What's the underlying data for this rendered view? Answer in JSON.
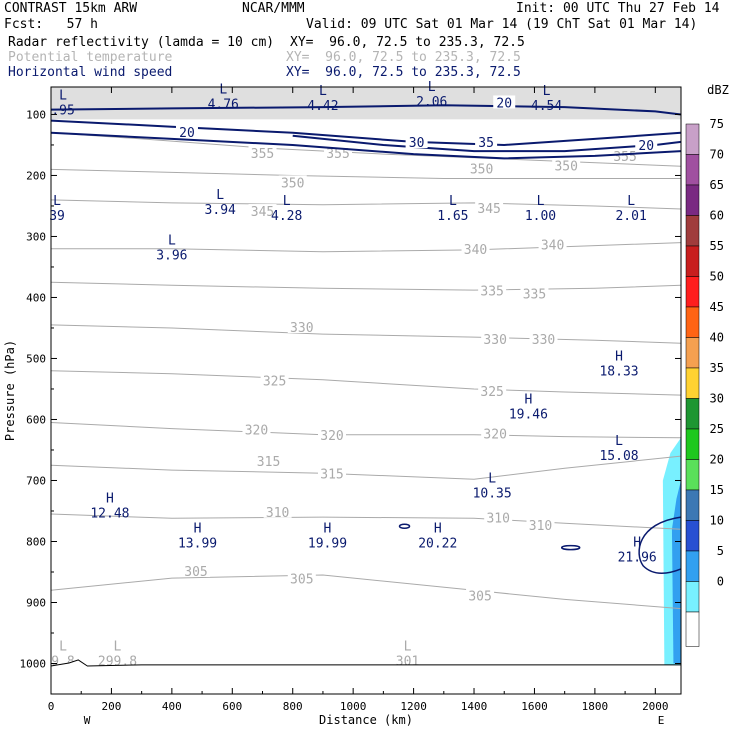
{
  "header": {
    "left_line1": "CONTRAST 15km ARW",
    "center_line1": "NCAR/MMM",
    "right_line1": "Init: 00 UTC Thu 27 Feb 14",
    "left_line2": "Fcst:   57 h",
    "right_line2": "Valid: 09 UTC Sat 01 Mar 14 (19 ChT Sat 01 Mar 14)"
  },
  "fields": [
    {
      "label": "Radar reflectivity (lamda = 10 cm)",
      "xy": "XY=  96.0, 72.5 to 235.3, 72.5",
      "color": "#000000"
    },
    {
      "label": "Potential temperature",
      "xy": "XY=  96.0, 72.5 to 235.3, 72.5",
      "color": "#b4b4b4"
    },
    {
      "label": "Horizontal wind speed",
      "xy": "XY=  96.0, 72.5 to 235.3, 72.5",
      "color": "#0a1a6e"
    }
  ],
  "chart_data": {
    "type": "cross-section",
    "xlabel": "Distance (km)",
    "ylabel": "Pressure (hPa)",
    "x_ticks": [
      0,
      200,
      400,
      600,
      800,
      1000,
      1200,
      1400,
      1600,
      1800,
      2000
    ],
    "y_ticks": [
      100,
      200,
      300,
      400,
      500,
      600,
      700,
      800,
      900,
      1000
    ],
    "xlim": [
      0,
      2085
    ],
    "ylim": [
      1050,
      55
    ],
    "west_label": "W",
    "east_label": "E",
    "colorbar": {
      "unit": "dBZ",
      "levels": [
        {
          "v": "75",
          "c": "#c8a0c8"
        },
        {
          "v": "70",
          "c": "#a050a0"
        },
        {
          "v": "65",
          "c": "#7a2a82"
        },
        {
          "v": "60",
          "c": "#a03c3c"
        },
        {
          "v": "55",
          "c": "#c81e1e"
        },
        {
          "v": "50",
          "c": "#ff1e1e"
        },
        {
          "v": "45",
          "c": "#ff6414"
        },
        {
          "v": "40",
          "c": "#f5a050"
        },
        {
          "v": "35",
          "c": "#ffd232"
        },
        {
          "v": "30",
          "c": "#1e9632"
        },
        {
          "v": "25",
          "c": "#1ec81e"
        },
        {
          "v": "20",
          "c": "#5ae05a"
        },
        {
          "v": "15",
          "c": "#3c78b4"
        },
        {
          "v": "10",
          "c": "#2850d2"
        },
        {
          "v": "5",
          "c": "#32a0f0"
        },
        {
          "v": "0",
          "c": "#78f0ff"
        }
      ]
    },
    "theta_contours": [
      {
        "label": "355",
        "points": [
          [
            0,
            130
          ],
          [
            300,
            140
          ],
          [
            700,
            155
          ],
          [
            1100,
            165
          ],
          [
            1600,
            175
          ],
          [
            2085,
            185
          ]
        ]
      },
      {
        "label": "350",
        "points": [
          [
            0,
            190
          ],
          [
            400,
            195
          ],
          [
            800,
            200
          ],
          [
            1300,
            205
          ],
          [
            1700,
            205
          ],
          [
            2085,
            205
          ]
        ]
      },
      {
        "label": "345",
        "points": [
          [
            0,
            240
          ],
          [
            400,
            245
          ],
          [
            900,
            248
          ],
          [
            1400,
            245
          ],
          [
            1800,
            250
          ],
          [
            2085,
            255
          ]
        ]
      },
      {
        "label": "340",
        "points": [
          [
            0,
            320
          ],
          [
            400,
            320
          ],
          [
            900,
            325
          ],
          [
            1400,
            322
          ],
          [
            1800,
            315
          ],
          [
            2085,
            310
          ]
        ]
      },
      {
        "label": "335",
        "points": [
          [
            0,
            375
          ],
          [
            400,
            380
          ],
          [
            900,
            385
          ],
          [
            1400,
            388
          ],
          [
            1800,
            385
          ],
          [
            2085,
            380
          ]
        ]
      },
      {
        "label": "330",
        "points": [
          [
            0,
            445
          ],
          [
            400,
            450
          ],
          [
            900,
            460
          ],
          [
            1400,
            465
          ],
          [
            1800,
            470
          ],
          [
            2085,
            475
          ]
        ]
      },
      {
        "label": "325",
        "points": [
          [
            0,
            520
          ],
          [
            400,
            525
          ],
          [
            900,
            535
          ],
          [
            1400,
            550
          ],
          [
            1700,
            555
          ],
          [
            2085,
            560
          ]
        ]
      },
      {
        "label": "320",
        "points": [
          [
            0,
            605
          ],
          [
            400,
            615
          ],
          [
            900,
            625
          ],
          [
            1400,
            625
          ],
          [
            1700,
            628
          ],
          [
            2085,
            630
          ]
        ]
      },
      {
        "label": "315",
        "points": [
          [
            0,
            675
          ],
          [
            400,
            683
          ],
          [
            900,
            688
          ],
          [
            1400,
            698
          ],
          [
            1700,
            680
          ],
          [
            2085,
            660
          ]
        ]
      },
      {
        "label": "310",
        "points": [
          [
            0,
            755
          ],
          [
            400,
            762
          ],
          [
            900,
            760
          ],
          [
            1400,
            762
          ],
          [
            1700,
            770
          ],
          [
            2085,
            780
          ]
        ]
      },
      {
        "label": "305",
        "points": [
          [
            0,
            880
          ],
          [
            400,
            860
          ],
          [
            900,
            855
          ],
          [
            1400,
            880
          ],
          [
            1700,
            895
          ],
          [
            2085,
            910
          ]
        ]
      }
    ],
    "theta_labels": [
      {
        "v": "355",
        "x": 700,
        "y": 165
      },
      {
        "v": "355",
        "x": 950,
        "y": 165
      },
      {
        "v": "355",
        "x": 1900,
        "y": 170
      },
      {
        "v": "350",
        "x": 800,
        "y": 213
      },
      {
        "v": "350",
        "x": 1425,
        "y": 190
      },
      {
        "v": "350",
        "x": 1705,
        "y": 185
      },
      {
        "v": "345",
        "x": 700,
        "y": 260
      },
      {
        "v": "345",
        "x": 1450,
        "y": 255
      },
      {
        "v": "340",
        "x": 1405,
        "y": 322
      },
      {
        "v": "340",
        "x": 1660,
        "y": 315
      },
      {
        "v": "335",
        "x": 1460,
        "y": 390
      },
      {
        "v": "335",
        "x": 1600,
        "y": 395
      },
      {
        "v": "330",
        "x": 830,
        "y": 450
      },
      {
        "v": "330",
        "x": 1470,
        "y": 470
      },
      {
        "v": "330",
        "x": 1630,
        "y": 470
      },
      {
        "v": "325",
        "x": 740,
        "y": 538
      },
      {
        "v": "325",
        "x": 1460,
        "y": 555
      },
      {
        "v": "320",
        "x": 680,
        "y": 618
      },
      {
        "v": "320",
        "x": 930,
        "y": 627
      },
      {
        "v": "320",
        "x": 1470,
        "y": 625
      },
      {
        "v": "315",
        "x": 720,
        "y": 670
      },
      {
        "v": "315",
        "x": 930,
        "y": 690
      },
      {
        "v": "310",
        "x": 750,
        "y": 753
      },
      {
        "v": "310",
        "x": 1480,
        "y": 762
      },
      {
        "v": "310",
        "x": 1620,
        "y": 775
      },
      {
        "v": "305",
        "x": 480,
        "y": 850
      },
      {
        "v": "305",
        "x": 830,
        "y": 862
      },
      {
        "v": "305",
        "x": 1420,
        "y": 890
      }
    ],
    "wind_contours": [
      {
        "label": "20",
        "points": [
          [
            0,
            92
          ],
          [
            400,
            90
          ],
          [
            900,
            88
          ],
          [
            1300,
            85
          ],
          [
            1700,
            88
          ],
          [
            2000,
            95
          ],
          [
            2085,
            100
          ]
        ]
      },
      {
        "label": "30",
        "points": [
          [
            0,
            110
          ],
          [
            400,
            120
          ],
          [
            800,
            130
          ],
          [
            1200,
            145
          ],
          [
            1500,
            150
          ],
          [
            1800,
            140
          ],
          [
            2085,
            130
          ]
        ]
      },
      {
        "label": "35",
        "points": [
          [
            800,
            135
          ],
          [
            1100,
            150
          ],
          [
            1400,
            160
          ],
          [
            1700,
            160
          ],
          [
            2000,
            150
          ],
          [
            2085,
            145
          ]
        ]
      },
      {
        "label": "20",
        "points": [
          [
            0,
            130
          ],
          [
            400,
            140
          ],
          [
            800,
            150
          ],
          [
            1200,
            165
          ],
          [
            1500,
            172
          ],
          [
            1800,
            168
          ],
          [
            2085,
            160
          ]
        ]
      }
    ],
    "wind_labels": [
      {
        "v": "20",
        "x": 1500,
        "y": 82
      },
      {
        "v": "20",
        "x": 450,
        "y": 130
      },
      {
        "v": "30",
        "x": 1210,
        "y": 147
      },
      {
        "v": "35",
        "x": 1440,
        "y": 147
      },
      {
        "v": "20",
        "x": 1970,
        "y": 152
      }
    ],
    "wind_extrema": [
      {
        "kind": "L",
        "v": ".95",
        "x": 40,
        "y": 82
      },
      {
        "kind": "L",
        "v": "4.76",
        "x": 570,
        "y": 72
      },
      {
        "kind": "L",
        "v": "4.42",
        "x": 900,
        "y": 75
      },
      {
        "kind": "L",
        "v": "2.06",
        "x": 1260,
        "y": 68
      },
      {
        "kind": "L",
        "v": "4.54",
        "x": 1640,
        "y": 75
      },
      {
        "kind": "L",
        "v": "39",
        "x": 20,
        "y": 255
      },
      {
        "kind": "L",
        "v": "3.94",
        "x": 560,
        "y": 245
      },
      {
        "kind": "L",
        "v": "4.28",
        "x": 780,
        "y": 255
      },
      {
        "kind": "L",
        "v": "1.65",
        "x": 1330,
        "y": 255
      },
      {
        "kind": "L",
        "v": "1.00",
        "x": 1620,
        "y": 255
      },
      {
        "kind": "L",
        "v": "2.01",
        "x": 1920,
        "y": 255
      },
      {
        "kind": "L",
        "v": "3.96",
        "x": 400,
        "y": 320
      },
      {
        "kind": "H",
        "v": "18.33",
        "x": 1880,
        "y": 510
      },
      {
        "kind": "H",
        "v": "19.46",
        "x": 1580,
        "y": 580
      },
      {
        "kind": "L",
        "v": "15.08",
        "x": 1880,
        "y": 648
      },
      {
        "kind": "L",
        "v": "10.35",
        "x": 1460,
        "y": 710
      },
      {
        "kind": "H",
        "v": "12.48",
        "x": 195,
        "y": 743
      },
      {
        "kind": "H",
        "v": "13.99",
        "x": 485,
        "y": 792
      },
      {
        "kind": "H",
        "v": "19.99",
        "x": 915,
        "y": 792
      },
      {
        "kind": "H",
        "v": "20.22",
        "x": 1280,
        "y": 792
      },
      {
        "kind": "H",
        "v": "21.96",
        "x": 1940,
        "y": 815
      }
    ],
    "theta_extrema": [
      {
        "kind": "L",
        "v": "9.8",
        "x": -10,
        "y": 985
      },
      {
        "kind": "L",
        "v": "299.8",
        "x": 220,
        "y": 985
      },
      {
        "kind": "L",
        "v": "301",
        "x": 1180,
        "y": 985
      }
    ]
  }
}
